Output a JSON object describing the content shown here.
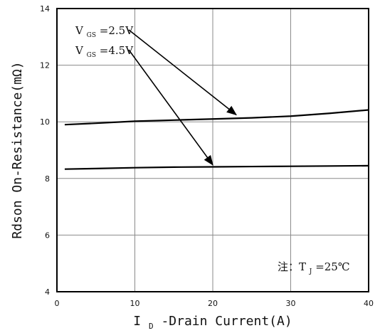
{
  "chart_data": {
    "type": "line",
    "xlabel": {
      "prefix": "I",
      "subscript": "D",
      "suffix": "-Drain Current(A)"
    },
    "ylabel": "Rdson On-Resistance(mΩ)",
    "xlim": [
      0,
      40
    ],
    "ylim": [
      4,
      14
    ],
    "xticks": [
      0,
      10,
      20,
      30,
      40
    ],
    "yticks": [
      4,
      6,
      8,
      10,
      12,
      14
    ],
    "grid": true,
    "series": [
      {
        "name": "VGS=2.5V",
        "label": {
          "main": "V",
          "subscript": "GS",
          "value": "=2.5V"
        },
        "x": [
          1,
          5,
          10,
          15,
          20,
          25,
          30,
          35,
          40
        ],
        "y": [
          9.9,
          9.95,
          10.02,
          10.06,
          10.1,
          10.14,
          10.2,
          10.3,
          10.42
        ],
        "arrow_target": {
          "x": 23,
          "y": 10.25
        }
      },
      {
        "name": "VGS=4.5V",
        "label": {
          "main": "V",
          "subscript": "GS",
          "value": "=4.5V"
        },
        "x": [
          1,
          5,
          10,
          15,
          20,
          25,
          30,
          35,
          40
        ],
        "y": [
          8.33,
          8.35,
          8.38,
          8.4,
          8.41,
          8.42,
          8.43,
          8.44,
          8.45
        ],
        "arrow_target": {
          "x": 20,
          "y": 8.48
        }
      }
    ],
    "annotation": {
      "prefix": "注：T",
      "subscript": "J",
      "suffix": "=25℃"
    }
  }
}
